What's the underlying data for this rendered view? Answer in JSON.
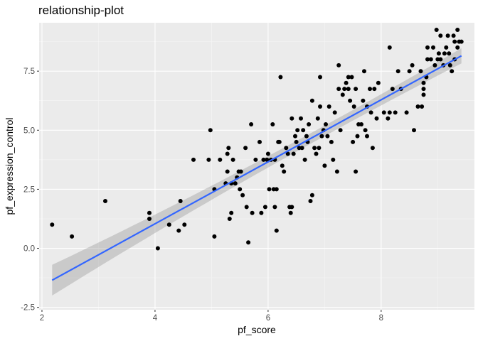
{
  "chart_data": {
    "type": "scatter",
    "title": "relationship-plot",
    "xlabel": "pf_score",
    "ylabel": "pf_expression_control",
    "xlim": [
      1.95,
      9.65
    ],
    "ylim": [
      -2.6,
      9.55
    ],
    "x_ticks": [
      2,
      4,
      6,
      8
    ],
    "x_tick_labels": [
      "2",
      "4",
      "6",
      "8"
    ],
    "y_ticks": [
      -2.5,
      0.0,
      2.5,
      5.0,
      7.5
    ],
    "y_tick_labels": [
      "-2.5",
      "0.0",
      "2.5",
      "5.0",
      "7.5"
    ],
    "grid": true,
    "legend": "none",
    "colors": {
      "panel_bg": "#ebebeb",
      "grid_major": "#ffffff",
      "points": "#000000",
      "fit_line": "#3366ff",
      "confidence_band": "#999999"
    },
    "points": [
      [
        2.18,
        1.0
      ],
      [
        2.53,
        0.5
      ],
      [
        3.12,
        2.0
      ],
      [
        3.9,
        1.25
      ],
      [
        3.9,
        1.5
      ],
      [
        4.05,
        0.0
      ],
      [
        4.25,
        1.0
      ],
      [
        4.42,
        0.75
      ],
      [
        4.45,
        2.0
      ],
      [
        4.52,
        1.0
      ],
      [
        4.68,
        3.75
      ],
      [
        4.95,
        3.75
      ],
      [
        4.98,
        5.0
      ],
      [
        5.05,
        2.5
      ],
      [
        5.05,
        0.5
      ],
      [
        5.15,
        3.75
      ],
      [
        5.25,
        2.75
      ],
      [
        5.28,
        3.25
      ],
      [
        5.28,
        4.0
      ],
      [
        5.3,
        4.25
      ],
      [
        5.32,
        1.25
      ],
      [
        5.35,
        1.5
      ],
      [
        5.35,
        2.75
      ],
      [
        5.38,
        3.75
      ],
      [
        5.42,
        2.75
      ],
      [
        5.45,
        3.0
      ],
      [
        5.48,
        3.25
      ],
      [
        5.5,
        2.5
      ],
      [
        5.52,
        3.25
      ],
      [
        5.55,
        2.25
      ],
      [
        5.6,
        4.25
      ],
      [
        5.62,
        1.75
      ],
      [
        5.65,
        0.25
      ],
      [
        5.7,
        5.25
      ],
      [
        5.72,
        1.5
      ],
      [
        5.78,
        3.75
      ],
      [
        5.85,
        4.5
      ],
      [
        5.88,
        1.5
      ],
      [
        5.92,
        3.75
      ],
      [
        5.95,
        1.75
      ],
      [
        5.98,
        3.75
      ],
      [
        6.0,
        4.0
      ],
      [
        6.02,
        2.5
      ],
      [
        6.05,
        3.75
      ],
      [
        6.08,
        5.25
      ],
      [
        6.1,
        2.5
      ],
      [
        6.12,
        3.75
      ],
      [
        6.12,
        1.75
      ],
      [
        6.15,
        2.5
      ],
      [
        6.15,
        0.75
      ],
      [
        6.18,
        4.5
      ],
      [
        6.2,
        4.5
      ],
      [
        6.22,
        7.25
      ],
      [
        6.25,
        3.5
      ],
      [
        6.28,
        3.25
      ],
      [
        6.32,
        4.25
      ],
      [
        6.35,
        4.0
      ],
      [
        6.38,
        1.75
      ],
      [
        6.4,
        1.5
      ],
      [
        6.42,
        5.5
      ],
      [
        6.42,
        1.75
      ],
      [
        6.45,
        4.0
      ],
      [
        6.48,
        4.75
      ],
      [
        6.5,
        4.5
      ],
      [
        6.52,
        5.0
      ],
      [
        6.55,
        4.25
      ],
      [
        6.58,
        5.5
      ],
      [
        6.6,
        4.25
      ],
      [
        6.62,
        5.0
      ],
      [
        6.65,
        3.75
      ],
      [
        6.68,
        4.75
      ],
      [
        6.7,
        4.5
      ],
      [
        6.72,
        5.25
      ],
      [
        6.75,
        2.0
      ],
      [
        6.78,
        2.25
      ],
      [
        6.78,
        6.25
      ],
      [
        6.82,
        4.25
      ],
      [
        6.85,
        4.0
      ],
      [
        6.88,
        5.5
      ],
      [
        6.9,
        4.25
      ],
      [
        6.92,
        6.0
      ],
      [
        6.92,
        7.25
      ],
      [
        6.95,
        4.75
      ],
      [
        6.98,
        5.0
      ],
      [
        7.0,
        3.5
      ],
      [
        7.02,
        5.25
      ],
      [
        7.05,
        4.75
      ],
      [
        7.08,
        6.0
      ],
      [
        7.12,
        4.5
      ],
      [
        7.15,
        3.75
      ],
      [
        7.18,
        5.75
      ],
      [
        7.22,
        3.25
      ],
      [
        7.25,
        6.75
      ],
      [
        7.25,
        7.75
      ],
      [
        7.28,
        5.0
      ],
      [
        7.32,
        6.5
      ],
      [
        7.35,
        6.75
      ],
      [
        7.38,
        7.0
      ],
      [
        7.42,
        6.75
      ],
      [
        7.42,
        7.25
      ],
      [
        7.45,
        6.25
      ],
      [
        7.48,
        7.25
      ],
      [
        7.5,
        4.5
      ],
      [
        7.52,
        6.0
      ],
      [
        7.55,
        6.75
      ],
      [
        7.55,
        3.25
      ],
      [
        7.58,
        4.75
      ],
      [
        7.6,
        5.25
      ],
      [
        7.65,
        5.25
      ],
      [
        7.68,
        6.25
      ],
      [
        7.7,
        7.5
      ],
      [
        7.72,
        5.0
      ],
      [
        7.75,
        4.75
      ],
      [
        7.75,
        6.0
      ],
      [
        7.8,
        6.75
      ],
      [
        7.82,
        5.75
      ],
      [
        7.85,
        4.25
      ],
      [
        7.88,
        6.75
      ],
      [
        7.92,
        5.5
      ],
      [
        7.95,
        7.0
      ],
      [
        8.05,
        5.75
      ],
      [
        8.12,
        5.5
      ],
      [
        8.15,
        8.5
      ],
      [
        8.15,
        5.75
      ],
      [
        8.2,
        6.75
      ],
      [
        8.25,
        5.75
      ],
      [
        8.3,
        7.5
      ],
      [
        8.35,
        6.75
      ],
      [
        8.45,
        5.75
      ],
      [
        8.5,
        7.5
      ],
      [
        8.55,
        7.75
      ],
      [
        8.58,
        5.0
      ],
      [
        8.65,
        6.0
      ],
      [
        8.7,
        7.5
      ],
      [
        8.72,
        6.0
      ],
      [
        8.75,
        7.0
      ],
      [
        8.75,
        6.75
      ],
      [
        8.75,
        6.5
      ],
      [
        8.8,
        7.25
      ],
      [
        8.82,
        8.0
      ],
      [
        8.82,
        8.5
      ],
      [
        8.88,
        8.0
      ],
      [
        8.92,
        8.5
      ],
      [
        8.95,
        7.75
      ],
      [
        8.98,
        9.25
      ],
      [
        9.0,
        8.0
      ],
      [
        9.02,
        8.25
      ],
      [
        9.05,
        9.0
      ],
      [
        9.05,
        8.0
      ],
      [
        9.1,
        7.75
      ],
      [
        9.12,
        8.25
      ],
      [
        9.15,
        8.5
      ],
      [
        9.18,
        9.0
      ],
      [
        9.2,
        8.25
      ],
      [
        9.22,
        7.75
      ],
      [
        9.25,
        7.5
      ],
      [
        9.28,
        9.0
      ],
      [
        9.3,
        8.75
      ],
      [
        9.3,
        8.0
      ],
      [
        9.35,
        8.5
      ],
      [
        9.35,
        9.25
      ],
      [
        9.38,
        8.75
      ],
      [
        9.42,
        8.75
      ]
    ],
    "fit": {
      "method": "linear",
      "x": [
        2.18,
        9.42
      ],
      "y": [
        -1.35,
        8.15
      ],
      "band_halfwidth": [
        0.65,
        0.25,
        0.32
      ]
    }
  }
}
